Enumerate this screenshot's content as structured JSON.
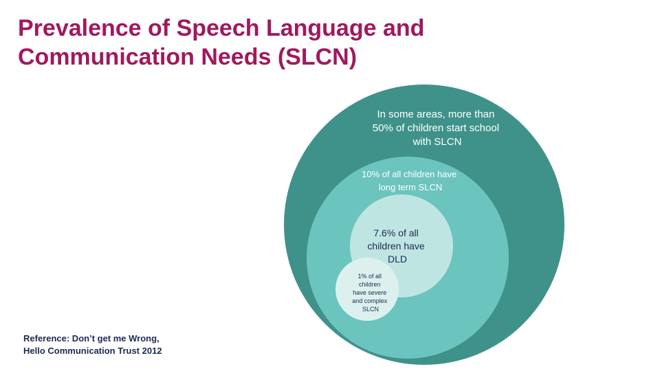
{
  "slide": {
    "title_lines": [
      "Prevalence of Speech Language and",
      "Communication Needs (SLCN)"
    ],
    "reference_lines": [
      "Reference: Don’t get me Wrong,",
      "Hello Communication Trust 2012"
    ]
  },
  "colors": {
    "title": "#a0195e",
    "outer_circle": "#3f928a",
    "middle_circle": "#6cc4be",
    "inner_circle": "#bfe5e2",
    "small_circle": "#dcf0ee",
    "light_text": "#ffffff",
    "dark_text": "#1c2a52"
  },
  "diagram": {
    "outer": {
      "lines": [
        "In some areas, more than",
        "50% of children start school",
        "with SLCN"
      ]
    },
    "middle": {
      "lines": [
        "10% of all children have",
        "long term SLCN"
      ]
    },
    "inner": {
      "lines": [
        "7.6% of all",
        "children have",
        "DLD"
      ]
    },
    "small": {
      "lines": [
        "1% of all",
        "children",
        "have severe",
        "and complex",
        "SLCN"
      ]
    }
  }
}
